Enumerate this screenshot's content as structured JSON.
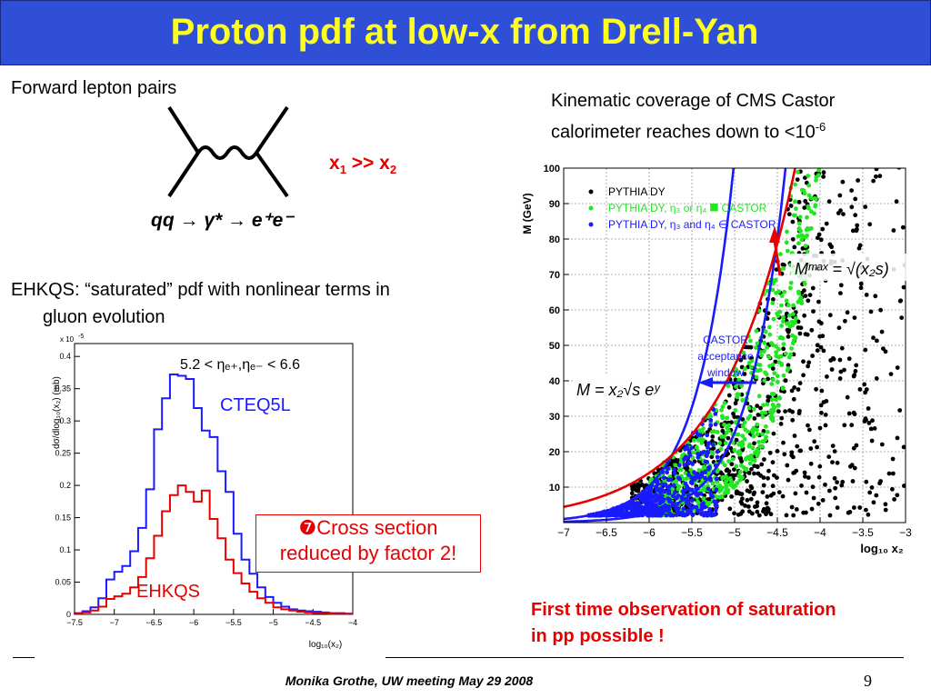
{
  "slide": {
    "title": "Proton pdf at low-x from Drell-Yan",
    "forward_label": "Forward lepton pairs",
    "x_relation": {
      "x": "x",
      "sub1": "1",
      "op": " >> ",
      "sub2": "2"
    },
    "process": "qq → γ* → e⁺e⁻",
    "ehkqs_line1": "EHKQS: “saturated” pdf with nonlinear terms in",
    "ehkqs_line2": "gluon evolution",
    "kinematic_line1": "Kinematic coverage of CMS Castor",
    "kinematic_line2": "calorimeter reaches down to <10",
    "kinematic_exp": "-6",
    "note_line1": "❼Cross section",
    "note_line2": "reduced by factor 2!",
    "conclusion_line1": "First time observation of saturation",
    "conclusion_line2": "in pp possible !",
    "footer": "Monika Grothe, UW meeting May 29 2008",
    "page_number": "9"
  },
  "colors": {
    "title_bg": "#2f4fd7",
    "title_text": "#ffff1e",
    "red": "#e60000",
    "blue": "#1a1aff",
    "green": "#22e622"
  },
  "chart_data": [
    {
      "type": "line",
      "x_bin_edges": [
        -7.5,
        -7.4,
        -7.3,
        -7.2,
        -7.1,
        -7.0,
        -6.9,
        -6.8,
        -6.7,
        -6.6,
        -6.5,
        -6.4,
        -6.3,
        -6.2,
        -6.1,
        -6.0,
        -5.9,
        -5.8,
        -5.7,
        -5.6,
        -5.5,
        -5.4,
        -5.3,
        -5.2,
        -5.1,
        -5.0,
        -4.9,
        -4.8,
        -4.7,
        -4.6,
        -4.5,
        -4.4,
        -4.3,
        -4.2,
        -4.1,
        -4.0
      ],
      "series": [
        {
          "name": "CTEQ5L",
          "color": "#1a1aff",
          "values": [
            0.002,
            0.005,
            0.011,
            0.025,
            0.054,
            0.066,
            0.075,
            0.098,
            0.134,
            0.194,
            0.287,
            0.335,
            0.372,
            0.37,
            0.365,
            0.32,
            0.285,
            0.275,
            0.222,
            0.19,
            0.125,
            0.085,
            0.063,
            0.042,
            0.027,
            0.018,
            0.012,
            0.008,
            0.006,
            0.005,
            0.004,
            0.003,
            0.002,
            0.002,
            0.001
          ]
        },
        {
          "name": "EHKQS",
          "color": "#e60000",
          "values": [
            0.001,
            0.003,
            0.006,
            0.012,
            0.024,
            0.028,
            0.032,
            0.042,
            0.058,
            0.087,
            0.122,
            0.16,
            0.185,
            0.2,
            0.19,
            0.175,
            0.192,
            0.148,
            0.118,
            0.085,
            0.064,
            0.048,
            0.035,
            0.025,
            0.018,
            0.011,
            0.008,
            0.006,
            0.004,
            0.003,
            0.002,
            0.002,
            0.001,
            0.001,
            0.001
          ]
        }
      ],
      "y_multiplier": "x 10",
      "y_multiplier_exp": "-5",
      "ylabel": "dσ/dlog₁₀(x₂) (mb)",
      "xlabel": "log₁₀(x₂)",
      "xlim": [
        -7.5,
        -4
      ],
      "ylim": [
        0,
        0.42
      ],
      "x_ticks": [
        -7.5,
        -7,
        -6.5,
        -6,
        -5.5,
        -5,
        -4.5,
        -4
      ],
      "x_tick_labels": [
        "−7.5",
        "−7",
        "−6.5",
        "−6",
        "−5.5",
        "−5",
        "−4.5",
        "−4"
      ],
      "y_ticks": [
        0,
        0.05,
        0.1,
        0.15,
        0.2,
        0.25,
        0.3,
        0.35,
        0.4
      ],
      "y_tick_labels": [
        "0",
        "0.05",
        "0.1",
        "0.15",
        "0.2",
        "0.25",
        "0.3",
        "0.35",
        "0.4"
      ],
      "annotation_cut": "5.2 < ηₑ₊,ηₑ₋ < 6.6",
      "grid": false
    },
    {
      "type": "scatter",
      "xlim": [
        -7,
        -3
      ],
      "ylim": [
        0,
        100
      ],
      "xlabel": "log₁₀ x₂",
      "ylabel": "M (GeV)",
      "x_ticks": [
        -7,
        -6.5,
        -6,
        -5.5,
        -5,
        -4.5,
        -4,
        -3.5,
        -3
      ],
      "x_tick_labels": [
        "−7",
        "−6.5",
        "−6",
        "−5.5",
        "−5",
        "−4.5",
        "−4",
        "−3.5",
        "−3"
      ],
      "y_ticks": [
        10,
        20,
        30,
        40,
        50,
        60,
        70,
        80,
        90,
        100
      ],
      "y_tick_labels": [
        "10",
        "20",
        "30",
        "40",
        "50",
        "60",
        "70",
        "80",
        "90",
        "100"
      ],
      "grid": true,
      "legend_position": "top-left",
      "legend": [
        {
          "label": "PYTHIA DY",
          "color": "#000000"
        },
        {
          "label": "PYTHIA DY, η₃ or η₄ ⯀ CASTOR",
          "color": "#22e622"
        },
        {
          "label": "PYTHIA DY, η₃ and η₄ ∈ CASTOR",
          "color": "#1a1aff"
        }
      ],
      "annotations": {
        "castor_window": [
          "CASTOR",
          "acceptance",
          "window"
        ],
        "m_max": "Mᵐᵃˣ = √(x₂s)",
        "m_formula": "M = x₂√s eʸ"
      },
      "curves": [
        {
          "name": "M = x₂√s·e^y, y=6.6",
          "color": "#1a1aff",
          "sqrt_s_GeV": 14000,
          "y": 6.6
        },
        {
          "name": "M = x₂√s·e^y, y=5.2",
          "color": "#1a1aff",
          "sqrt_s_GeV": 14000,
          "y": 5.2
        },
        {
          "name": "Mmax = √(x₂ s)",
          "color": "#e60000",
          "sqrt_s_GeV": 14000
        }
      ],
      "populations": [
        {
          "color": "#000000",
          "count": 1100,
          "x_range": [
            -6.2,
            -3
          ],
          "min_mass_offset": 0
        },
        {
          "color": "#22e622",
          "count": 700,
          "x_range": [
            -6.0,
            -3.8
          ],
          "min_mass_offset": 0
        },
        {
          "color": "#1a1aff",
          "count": 600,
          "x_range": [
            -7,
            -5.2
          ],
          "min_mass_offset": 0
        }
      ]
    }
  ]
}
